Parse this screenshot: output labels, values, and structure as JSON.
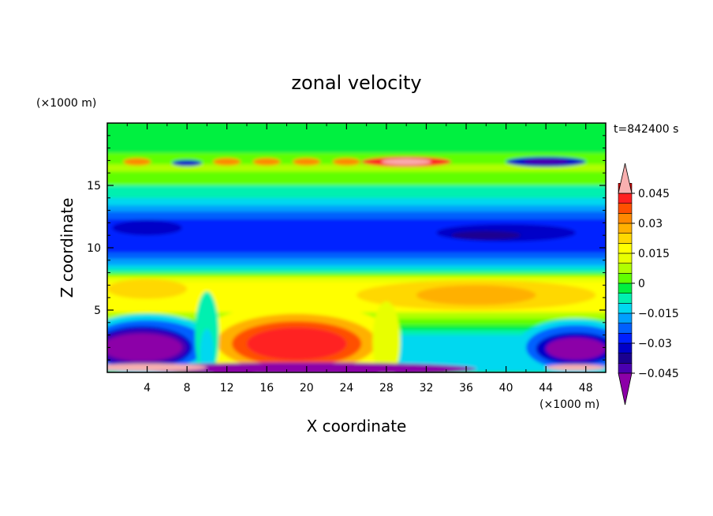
{
  "chart_data": {
    "type": "heatmap",
    "title": "zonal velocity",
    "xlabel": "X coordinate",
    "ylabel": "Z coordinate",
    "x_unit": "(×1000 m)",
    "y_unit": "(×1000 m)",
    "time_label": "t=842400 s",
    "xlim": [
      0,
      50
    ],
    "ylim": [
      0,
      20
    ],
    "xticks": [
      "4",
      "8",
      "12",
      "16",
      "20",
      "24",
      "28",
      "32",
      "36",
      "40",
      "44",
      "48"
    ],
    "yticks": [
      "5",
      "10",
      "15"
    ],
    "colorbar": {
      "levels": [
        -0.05,
        -0.045,
        -0.04,
        -0.035,
        -0.03,
        -0.025,
        -0.02,
        -0.015,
        -0.01,
        -0.005,
        0,
        0.005,
        0.01,
        0.015,
        0.02,
        0.025,
        0.03,
        0.035,
        0.04,
        0.045,
        0.05
      ],
      "tick_labels": [
        "0.045",
        "0.03",
        "0.015",
        "0",
        "−0.015",
        "−0.03",
        "−0.045"
      ],
      "colors": [
        "#8c00a8",
        "#4a00b0",
        "#1a0090",
        "#0000c8",
        "#0020ff",
        "#0060ff",
        "#00a0ff",
        "#00d8f0",
        "#00f0b0",
        "#00f040",
        "#60ff00",
        "#b0ff00",
        "#e8ff00",
        "#ffff00",
        "#ffd800",
        "#ffb000",
        "#ff8800",
        "#ff5000",
        "#ff2020",
        "#e00000",
        "#f8b0b0"
      ]
    }
  }
}
